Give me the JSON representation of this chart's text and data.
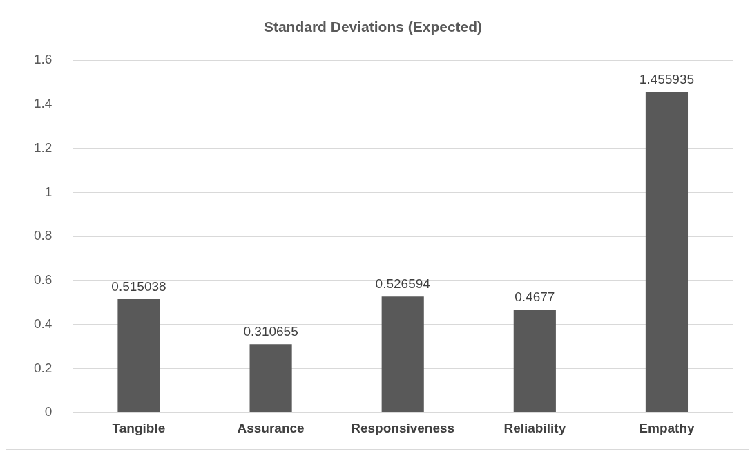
{
  "chart_data": {
    "type": "bar",
    "title": "Standard Deviations (Expected)",
    "categories": [
      "Tangible",
      "Assurance",
      "Responsiveness",
      "Reliability",
      "Empathy"
    ],
    "values": [
      0.515038,
      0.310655,
      0.526594,
      0.4677,
      1.455935
    ],
    "color": "#595959",
    "ylim": [
      0,
      1.6
    ],
    "yticks": [
      0,
      0.2,
      0.4,
      0.6,
      0.8,
      1,
      1.2,
      1.4,
      1.6
    ],
    "grid": "y",
    "data_labels": true,
    "legend": false
  }
}
